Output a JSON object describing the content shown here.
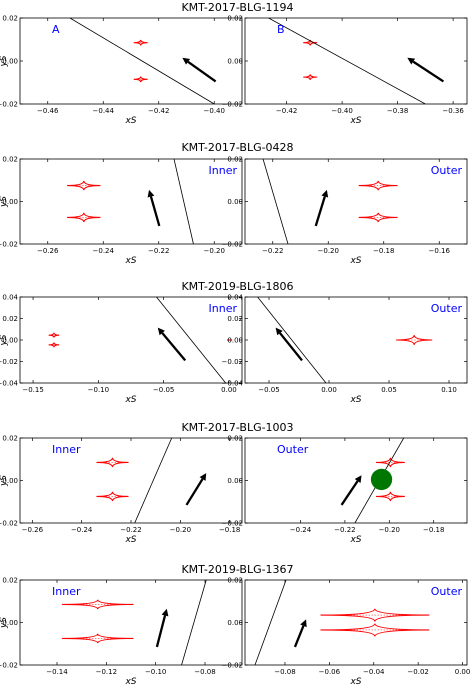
{
  "rows": [
    {
      "title": "KMT-2017-BLG-1194",
      "panels": [
        {
          "label": "A",
          "label_pos": "top-left",
          "xlim": [
            -0.47,
            -0.39
          ],
          "ylim": [
            -0.02,
            0.02
          ],
          "xticks": [
            -0.46,
            -0.44,
            -0.42,
            -0.4
          ],
          "xtick_labels": [
            "−0.46",
            "−0.44",
            "−0.42",
            "−0.40"
          ],
          "yticks": [
            -0.02,
            0.0,
            0.02
          ],
          "ytick_labels": [
            "−0.02",
            "0.00",
            "0.02"
          ],
          "xlabel": "xS",
          "ylabel": "yS",
          "caustics": [
            {
              "x": -0.4265,
              "y": 0.0085,
              "hw": 0.0025,
              "hh": 0.0013
            },
            {
              "x": -0.4265,
              "y": -0.0085,
              "hw": 0.0025,
              "hh": 0.0013
            }
          ],
          "line": [
            [
              -0.452,
              0.02
            ],
            [
              -0.4,
              -0.02
            ]
          ],
          "arrow": [
            [
              -0.3995,
              -0.0095
            ],
            [
              -0.4115,
              0.0015
            ]
          ],
          "disk": null
        },
        {
          "label": "B",
          "label_pos": "top-left",
          "xlim": [
            -0.435,
            -0.355
          ],
          "ylim": [
            -0.02,
            0.02
          ],
          "xticks": [
            -0.42,
            -0.4,
            -0.38,
            -0.36
          ],
          "xtick_labels": [
            "−0.42",
            "−0.40",
            "−0.38",
            "−0.36"
          ],
          "yticks": [
            -0.02,
            0.0,
            0.02
          ],
          "ytick_labels": [
            "−0.02",
            "0.00",
            "0.02"
          ],
          "xlabel": "xS",
          "ylabel": "",
          "caustics": [
            {
              "x": -0.4115,
              "y": 0.0085,
              "hw": 0.0025,
              "hh": 0.0013
            },
            {
              "x": -0.4115,
              "y": -0.0075,
              "hw": 0.0025,
              "hh": 0.0013
            }
          ],
          "line": [
            [
              -0.4265,
              0.02
            ],
            [
              -0.37,
              -0.02
            ]
          ],
          "arrow": [
            [
              -0.3635,
              -0.0095
            ],
            [
              -0.3765,
              0.0015
            ]
          ],
          "disk": null
        }
      ]
    },
    {
      "title": "KMT-2017-BLG-0428",
      "panels": [
        {
          "label": "Inner",
          "label_pos": "top-right",
          "xlim": [
            -0.27,
            -0.19
          ],
          "ylim": [
            -0.02,
            0.02
          ],
          "xticks": [
            -0.26,
            -0.24,
            -0.22,
            -0.2
          ],
          "xtick_labels": [
            "−0.26",
            "−0.24",
            "−0.22",
            "−0.20"
          ],
          "yticks": [
            -0.02,
            0.0,
            0.02
          ],
          "ytick_labels": [
            "−0.02",
            "0.00",
            "0.02"
          ],
          "xlabel": "xS",
          "ylabel": "yS",
          "caustics": [
            {
              "x": -0.247,
              "y": 0.0075,
              "hw": 0.006,
              "hh": 0.0022
            },
            {
              "x": -0.247,
              "y": -0.0075,
              "hw": 0.006,
              "hh": 0.0022
            }
          ],
          "line": [
            [
              -0.2145,
              0.02
            ],
            [
              -0.2075,
              -0.02
            ]
          ],
          "arrow": [
            [
              -0.2198,
              -0.0115
            ],
            [
              -0.2235,
              0.0055
            ]
          ],
          "disk": null
        },
        {
          "label": "Outer",
          "label_pos": "top-right",
          "xlim": [
            -0.23,
            -0.15
          ],
          "ylim": [
            -0.02,
            0.02
          ],
          "xticks": [
            -0.22,
            -0.2,
            -0.18,
            -0.16
          ],
          "xtick_labels": [
            "−0.22",
            "−0.20",
            "−0.18",
            "−0.16"
          ],
          "yticks": [
            -0.02,
            0.0,
            0.02
          ],
          "ytick_labels": [
            "−0.02",
            "0.00",
            "0.02"
          ],
          "xlabel": "xS",
          "ylabel": "",
          "caustics": [
            {
              "x": -0.182,
              "y": 0.0075,
              "hw": 0.007,
              "hh": 0.0022
            },
            {
              "x": -0.182,
              "y": -0.0075,
              "hw": 0.007,
              "hh": 0.0022
            }
          ],
          "line": [
            [
              -0.2235,
              0.02
            ],
            [
              -0.2145,
              -0.02
            ]
          ],
          "arrow": [
            [
              -0.2045,
              -0.0115
            ],
            [
              -0.2005,
              0.0055
            ]
          ],
          "disk": null
        }
      ]
    },
    {
      "title": "KMT-2019-BLG-1806",
      "panels": [
        {
          "label": "Inner",
          "label_pos": "top-right",
          "xlim": [
            -0.16,
            0.01
          ],
          "ylim": [
            -0.04,
            0.04
          ],
          "xticks": [
            -0.15,
            -0.1,
            -0.05,
            0.0
          ],
          "xtick_labels": [
            "−0.15",
            "−0.10",
            "−0.05",
            "0.00"
          ],
          "yticks": [
            -0.04,
            -0.02,
            0.0,
            0.02,
            0.04
          ],
          "ytick_labels": [
            "−0.04",
            "−0.02",
            "0.00",
            "0.02",
            "0.04"
          ],
          "xlabel": "xS",
          "ylabel": "yS",
          "caustics": [
            {
              "x": -0.134,
              "y": 0.0045,
              "hw": 0.004,
              "hh": 0.0022
            },
            {
              "x": -0.134,
              "y": -0.0045,
              "hw": 0.004,
              "hh": 0.0022
            },
            {
              "x": 0.0005,
              "y": 0.0,
              "hw": 0.002,
              "hh": 0.0005
            }
          ],
          "line": [
            [
              -0.0555,
              0.04
            ],
            [
              -0.0025,
              -0.04
            ]
          ],
          "arrow": [
            [
              -0.0335,
              -0.019
            ],
            [
              -0.0545,
              0.0115
            ]
          ],
          "disk": null
        },
        {
          "label": "Outer",
          "label_pos": "top-right",
          "xlim": [
            -0.07,
            0.115
          ],
          "ylim": [
            -0.04,
            0.04
          ],
          "xticks": [
            -0.05,
            0.0,
            0.05,
            0.1
          ],
          "xtick_labels": [
            "−0.05",
            "0.00",
            "0.05",
            "0.10"
          ],
          "yticks": [
            -0.04,
            -0.02,
            0.0,
            0.02,
            0.04
          ],
          "ytick_labels": [
            "−0.04",
            "−0.02",
            "0.00",
            "0.02",
            "0.04"
          ],
          "xlabel": "xS",
          "ylabel": "",
          "caustics": [
            {
              "x": 0.071,
              "y": 0.0,
              "hw": 0.015,
              "hh": 0.0045
            }
          ],
          "line": [
            [
              -0.0595,
              0.04
            ],
            [
              -0.0025,
              -0.04
            ]
          ],
          "arrow": [
            [
              -0.0225,
              -0.019
            ],
            [
              -0.0445,
              0.0115
            ]
          ],
          "disk": null
        }
      ]
    },
    {
      "title": "KMT-2017-BLG-1003",
      "panels": [
        {
          "label": "Inner",
          "label_pos": "top-left",
          "xlim": [
            -0.265,
            -0.175
          ],
          "ylim": [
            -0.02,
            0.02
          ],
          "xticks": [
            -0.26,
            -0.24,
            -0.22,
            -0.2,
            -0.18
          ],
          "xtick_labels": [
            "−0.26",
            "−0.24",
            "−0.22",
            "−0.20",
            "−0.18"
          ],
          "yticks": [
            -0.02,
            0.0,
            0.02
          ],
          "ytick_labels": [
            "−0.02",
            "0.00",
            "0.02"
          ],
          "xlabel": "xS",
          "ylabel": "yS",
          "caustics": [
            {
              "x": -0.2275,
              "y": 0.0085,
              "hw": 0.0065,
              "hh": 0.0022
            },
            {
              "x": -0.2275,
              "y": -0.0075,
              "hw": 0.0065,
              "hh": 0.0022
            }
          ],
          "line": [
            [
              -0.2185,
              -0.02
            ],
            [
              -0.2035,
              0.02
            ]
          ],
          "arrow": [
            [
              -0.1975,
              -0.0115
            ],
            [
              -0.1895,
              0.0035
            ]
          ],
          "disk": null
        },
        {
          "label": "Outer",
          "label_pos": "top-left",
          "xlim": [
            -0.265,
            -0.165
          ],
          "ylim": [
            -0.02,
            0.02
          ],
          "xticks": [
            -0.24,
            -0.22,
            -0.2,
            -0.18
          ],
          "xtick_labels": [
            "−0.24",
            "−0.22",
            "−0.20",
            "−0.18"
          ],
          "yticks": [
            -0.02,
            0.0,
            0.02
          ],
          "ytick_labels": [
            "−0.02",
            "0.00",
            "0.02"
          ],
          "xlabel": "xS",
          "ylabel": "",
          "caustics": [
            {
              "x": -0.1995,
              "y": 0.0085,
              "hw": 0.0065,
              "hh": 0.0022
            },
            {
              "x": -0.1995,
              "y": -0.0075,
              "hw": 0.0065,
              "hh": 0.0022
            }
          ],
          "line": [
            [
              -0.2155,
              -0.02
            ],
            [
              -0.1935,
              0.02
            ]
          ],
          "arrow": [
            [
              -0.2215,
              -0.0115
            ],
            [
              -0.2125,
              0.0025
            ]
          ],
          "disk": {
            "x": -0.2035,
            "y": 0.0005,
            "r": 0.0048,
            "color": "#007700"
          }
        }
      ]
    },
    {
      "title": "KMT-2019-BLG-1367",
      "panels": [
        {
          "label": "Inner",
          "label_pos": "top-left",
          "xlim": [
            -0.155,
            -0.065
          ],
          "ylim": [
            -0.02,
            0.02
          ],
          "xticks": [
            -0.14,
            -0.12,
            -0.1,
            -0.08
          ],
          "xtick_labels": [
            "−0.14",
            "−0.12",
            "−0.10",
            "−0.08"
          ],
          "yticks": [
            -0.02,
            0.0,
            0.02
          ],
          "ytick_labels": [
            "−0.02",
            "0.00",
            "0.02"
          ],
          "xlabel": "xS",
          "ylabel": "yS",
          "caustics": [
            {
              "x": -0.1235,
              "y": 0.0085,
              "hw": 0.0145,
              "hh": 0.0022
            },
            {
              "x": -0.1235,
              "y": -0.0075,
              "hw": 0.0145,
              "hh": 0.0022
            }
          ],
          "line": [
            [
              -0.0895,
              -0.02
            ],
            [
              -0.0795,
              0.02
            ]
          ],
          "arrow": [
            [
              -0.0995,
              -0.0115
            ],
            [
              -0.0955,
              0.0065
            ]
          ],
          "disk": null
        },
        {
          "label": "Outer",
          "label_pos": "top-right",
          "xlim": [
            -0.098,
            0.002
          ],
          "ylim": [
            -0.02,
            0.02
          ],
          "xticks": [
            -0.08,
            -0.06,
            -0.04,
            -0.02,
            0.0
          ],
          "xtick_labels": [
            "−0.08",
            "−0.06",
            "−0.04",
            "−0.02",
            "0.00"
          ],
          "yticks": [
            -0.02,
            0.0,
            0.02
          ],
          "ytick_labels": [
            "−0.02",
            "0.00",
            "0.02"
          ],
          "xlabel": "xS",
          "ylabel": "",
          "caustics": [
            {
              "x": -0.0395,
              "y": 0.0035,
              "hw": 0.0245,
              "hh": 0.003
            },
            {
              "x": -0.0395,
              "y": -0.0035,
              "hw": 0.0245,
              "hh": 0.003
            }
          ],
          "line": [
            [
              -0.0935,
              -0.02
            ],
            [
              -0.0795,
              0.02
            ]
          ],
          "arrow": [
            [
              -0.0755,
              -0.0115
            ],
            [
              -0.0705,
              0.0015
            ]
          ],
          "disk": null
        }
      ]
    }
  ],
  "colors": {
    "caustic": "#ff0000",
    "trajectory": "#000000",
    "label": "#0000ff",
    "frame": "#000000"
  }
}
